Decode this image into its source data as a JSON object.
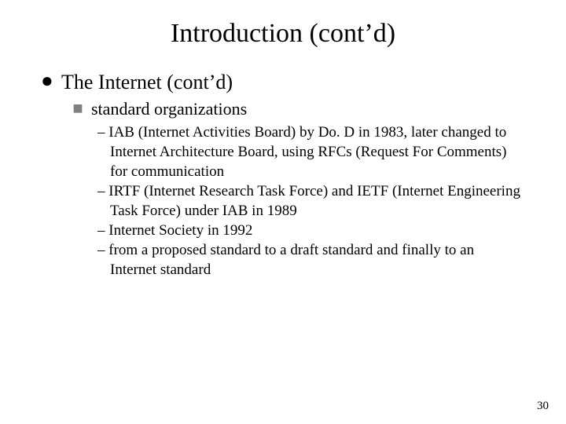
{
  "title": "Introduction (cont’d)",
  "level1": {
    "bullet": "●",
    "text": "The Internet (cont’d)"
  },
  "level2": {
    "bullet": "■",
    "text": "standard organizations"
  },
  "level3": {
    "items": [
      "– IAB (Internet Activities Board) by Do. D in 1983, later changed to Internet Architecture Board, using RFCs (Request For Comments) for communication",
      "– IRTF (Internet Research Task Force) and IETF (Internet Engineering Task Force) under IAB in 1989",
      "– Internet Society in 1992",
      "– from a proposed standard to a draft standard and finally to an Internet standard"
    ]
  },
  "page_number": "30",
  "colors": {
    "background": "#ffffff",
    "text": "#000000",
    "square_bullet": "#808080"
  },
  "fonts": {
    "family": "Times New Roman",
    "title_size_pt": 34,
    "l1_size_pt": 26,
    "l2_size_pt": 22,
    "l3_size_pt": 19,
    "pagenum_size_pt": 15
  }
}
